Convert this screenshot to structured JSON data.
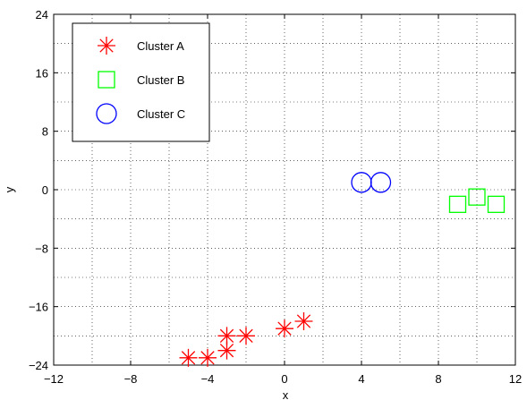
{
  "chart_data": {
    "type": "scatter",
    "title": "",
    "xlabel": "x",
    "ylabel": "y",
    "xlim": [
      -12,
      12
    ],
    "ylim": [
      -24,
      24
    ],
    "xticks": [
      -12,
      -8,
      -4,
      0,
      4,
      8,
      12
    ],
    "yticks": [
      -24,
      -16,
      -8,
      0,
      8,
      16,
      24
    ],
    "xtick_labels": [
      "−12",
      "−8",
      "−4",
      "0",
      "4",
      "8",
      "12"
    ],
    "ytick_labels": [
      "−24",
      "−16",
      "−8",
      "0",
      "8",
      "16",
      "24"
    ],
    "grid": true,
    "grid_style": "dotted",
    "legend_position": "top-left",
    "series": [
      {
        "name": "Cluster A",
        "marker": "asterisk",
        "color": "#ff0000",
        "points": [
          {
            "x": -5,
            "y": -23
          },
          {
            "x": -4,
            "y": -23
          },
          {
            "x": -3,
            "y": -22
          },
          {
            "x": -3,
            "y": -20
          },
          {
            "x": -2,
            "y": -20
          },
          {
            "x": 0,
            "y": -19
          },
          {
            "x": 1,
            "y": -18
          }
        ]
      },
      {
        "name": "Cluster B",
        "marker": "square",
        "color": "#00ff00",
        "points": [
          {
            "x": 9,
            "y": -2
          },
          {
            "x": 10,
            "y": -1
          },
          {
            "x": 11,
            "y": -2
          }
        ]
      },
      {
        "name": "Cluster C",
        "marker": "circle",
        "color": "#0000ff",
        "points": [
          {
            "x": 4,
            "y": 1
          },
          {
            "x": 5,
            "y": 1
          }
        ]
      }
    ]
  }
}
